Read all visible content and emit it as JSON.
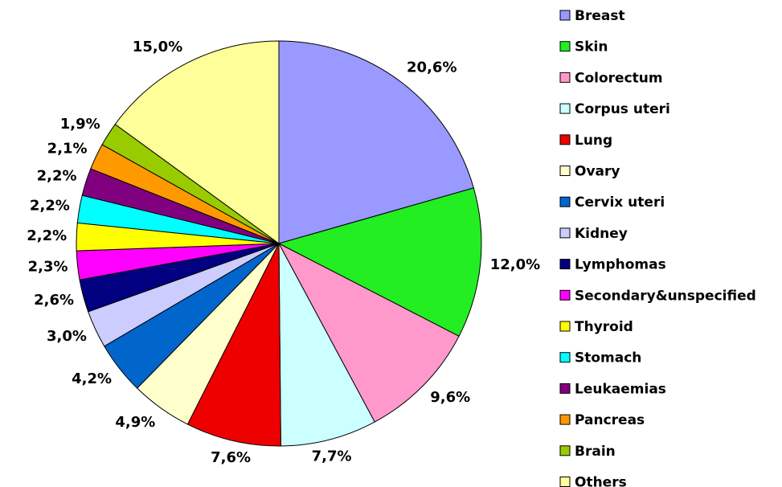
{
  "chart_data": {
    "type": "pie",
    "categories": [
      "Breast",
      "Skin",
      "Colorectum",
      "Corpus uteri",
      "Lung",
      "Ovary",
      "Cervix uteri",
      "Kidney",
      "Lymphomas",
      "Secondary&unspecified",
      "Thyroid",
      "Stomach",
      "Leukaemias",
      "Pancreas",
      "Brain",
      "Others"
    ],
    "values": [
      20.6,
      12.0,
      9.6,
      7.7,
      7.6,
      4.9,
      4.2,
      3.0,
      2.6,
      2.3,
      2.2,
      2.2,
      2.2,
      2.1,
      1.9,
      15.0
    ],
    "value_labels": [
      "20,6%",
      "12,0%",
      "9,6%",
      "7,7%",
      "7,6%",
      "4,9%",
      "4,2%",
      "3,0%",
      "2,6%",
      "2,3%",
      "2,2%",
      "2,2%",
      "2,2%",
      "2,1%",
      "1,9%",
      "15,0%"
    ],
    "colors": [
      "#9999ff",
      "#22ee22",
      "#ff99cc",
      "#ccffff",
      "#ee0000",
      "#ffffcc",
      "#0066cc",
      "#ccccff",
      "#000080",
      "#ff00ff",
      "#ffff00",
      "#00ffff",
      "#800080",
      "#ff9900",
      "#99cc00",
      "#ffff99"
    ],
    "legend": "right"
  }
}
